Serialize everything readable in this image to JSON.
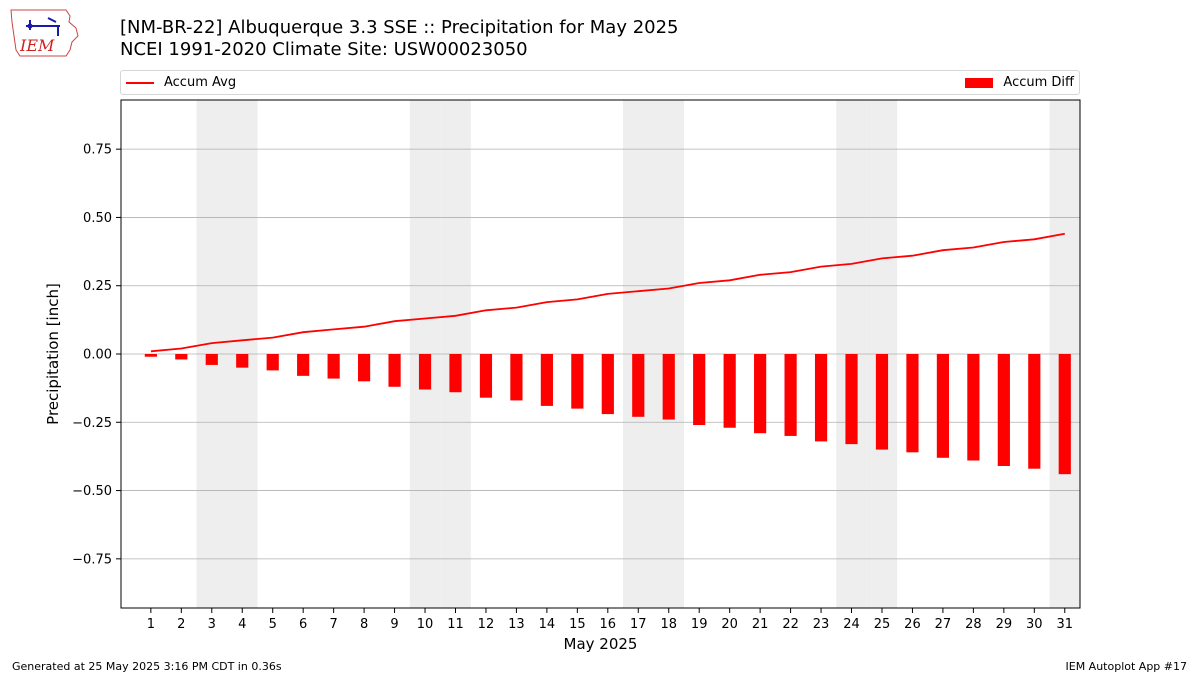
{
  "header": {
    "title_line1": "[NM-BR-22] Albuquerque 3.3 SSE :: Precipitation for May 2025",
    "title_line2": "NCEI 1991-2020 Climate Site: USW00023050"
  },
  "logo": {
    "text": "IEM"
  },
  "footer": {
    "left": "Generated at 25 May 2025 3:16 PM CDT in 0.36s",
    "right": "IEM Autoplot App #17"
  },
  "colors": {
    "series": "#ff0000",
    "weekend_shade": "#eeeeee",
    "grid": "#b0b0b0"
  },
  "chart_data": {
    "type": "bar",
    "xlabel": "May 2025",
    "ylabel": "Precipitation [inch]",
    "ylim": [
      -0.93,
      0.93
    ],
    "yticks": [
      -0.75,
      -0.5,
      -0.25,
      0.0,
      0.25,
      0.5,
      0.75
    ],
    "ytick_labels": [
      "−0.75",
      "−0.50",
      "−0.25",
      "0.00",
      "0.25",
      "0.50",
      "0.75"
    ],
    "grid": "horizontal",
    "legend_placement": "top",
    "x": [
      1,
      2,
      3,
      4,
      5,
      6,
      7,
      8,
      9,
      10,
      11,
      12,
      13,
      14,
      15,
      16,
      17,
      18,
      19,
      20,
      21,
      22,
      23,
      24,
      25,
      26,
      27,
      28,
      29,
      30,
      31
    ],
    "xtick_labels": [
      "1",
      "2",
      "3",
      "4",
      "5",
      "6",
      "7",
      "8",
      "9",
      "10",
      "11",
      "12",
      "13",
      "14",
      "15",
      "16",
      "17",
      "18",
      "19",
      "20",
      "21",
      "22",
      "23",
      "24",
      "25",
      "26",
      "27",
      "28",
      "29",
      "30",
      "31"
    ],
    "shaded_days": [
      3,
      4,
      10,
      11,
      17,
      18,
      24,
      25,
      31
    ],
    "series": [
      {
        "name": "Accum Avg",
        "kind": "line",
        "values": [
          0.01,
          0.02,
          0.04,
          0.05,
          0.06,
          0.08,
          0.09,
          0.1,
          0.12,
          0.13,
          0.14,
          0.16,
          0.17,
          0.19,
          0.2,
          0.22,
          0.23,
          0.24,
          0.26,
          0.27,
          0.29,
          0.3,
          0.32,
          0.33,
          0.35,
          0.36,
          0.38,
          0.39,
          0.41,
          0.42,
          0.44
        ]
      },
      {
        "name": "Accum Diff",
        "kind": "bar",
        "values": [
          -0.01,
          -0.02,
          -0.04,
          -0.05,
          -0.06,
          -0.08,
          -0.09,
          -0.1,
          -0.12,
          -0.13,
          -0.14,
          -0.16,
          -0.17,
          -0.19,
          -0.2,
          -0.22,
          -0.23,
          -0.24,
          -0.26,
          -0.27,
          -0.29,
          -0.3,
          -0.32,
          -0.33,
          -0.35,
          -0.36,
          -0.38,
          -0.39,
          -0.41,
          -0.42,
          -0.44
        ]
      }
    ]
  }
}
